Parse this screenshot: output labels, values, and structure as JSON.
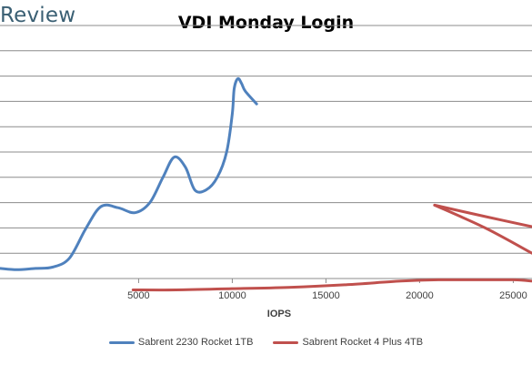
{
  "brand": {
    "text": "Review"
  },
  "chart_data": {
    "type": "line",
    "title": "VDI Monday Login",
    "xlabel": "IOPS",
    "ylabel": "",
    "xlim": [
      -2400,
      26000
    ],
    "ylim": [
      0,
      10
    ],
    "x_ticks": [
      5000,
      10000,
      15000,
      20000,
      25000
    ],
    "gridlines_y": [
      1,
      2,
      3,
      4,
      5,
      6,
      7,
      8,
      9,
      10
    ],
    "grid": true,
    "legend_position": "bottom",
    "series": [
      {
        "name": "Sabrent 2230 Rocket 1TB",
        "color": "#4f81bd",
        "x": [
          -2400,
          -1500,
          -500,
          400,
          1300,
          2200,
          3000,
          3900,
          4800,
          5600,
          6300,
          6900,
          7500,
          8000,
          8600,
          9200,
          9700,
          10000,
          10100,
          10300,
          10500,
          10700,
          11300
        ],
        "y": [
          0.4,
          0.35,
          0.4,
          0.45,
          0.8,
          2.0,
          2.85,
          2.8,
          2.6,
          3.0,
          4.0,
          4.8,
          4.4,
          3.5,
          3.5,
          4.0,
          5.0,
          6.5,
          7.5,
          7.9,
          7.7,
          7.4,
          6.9
        ]
      },
      {
        "name": "Sabrent Rocket 4 Plus 4TB",
        "color": "#c0504d",
        "x": [
          4700,
          7000,
          10000,
          13000,
          16000,
          19000,
          21000,
          23000,
          25000,
          26000
        ],
        "y": [
          -0.45,
          -0.45,
          -0.4,
          -0.35,
          -0.25,
          -0.1,
          -0.05,
          -0.05,
          -0.05,
          -0.1
        ]
      },
      {
        "name": "Sabrent Rocket 4 Plus 4TB",
        "color": "#c0504d",
        "x": [
          20800,
          23500,
          26000
        ],
        "y": [
          2.9,
          2.45,
          2.05
        ]
      },
      {
        "name": "Sabrent Rocket 4 Plus 4TB",
        "color": "#c0504d",
        "x": [
          20800,
          23500,
          26000
        ],
        "y": [
          2.9,
          2.0,
          1.0
        ]
      }
    ]
  },
  "legend": [
    {
      "label": "Sabrent 2230 Rocket 1TB",
      "color": "#4f81bd"
    },
    {
      "label": "Sabrent Rocket 4 Plus 4TB",
      "color": "#c0504d"
    }
  ]
}
